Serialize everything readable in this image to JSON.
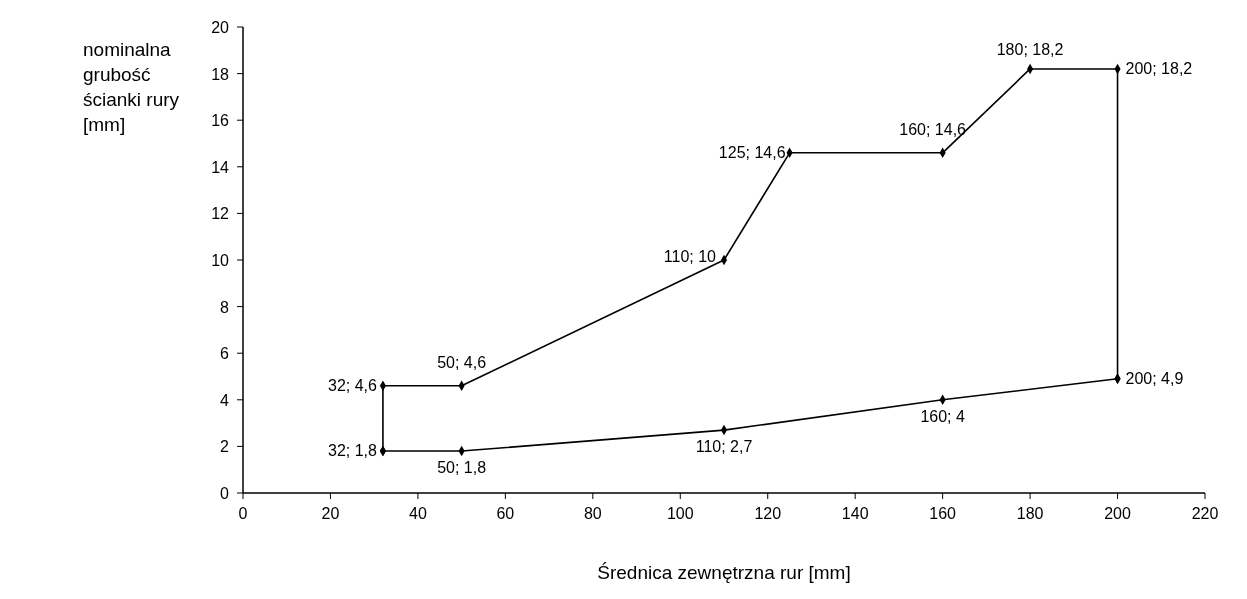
{
  "chart_data": {
    "type": "line",
    "xlabel": "Średnica zewnętrzna rur [mm]",
    "ylabel": "nominalna grubość ścianki rury [mm]",
    "xlim": [
      0,
      220
    ],
    "xticks": [
      0,
      20,
      40,
      60,
      80,
      100,
      120,
      140,
      160,
      180,
      200,
      220
    ],
    "ylim": [
      0,
      20
    ],
    "yticks": [
      0,
      2,
      4,
      6,
      8,
      10,
      12,
      14,
      16,
      18,
      20
    ],
    "grid": false,
    "marker": "diamond",
    "line_style": "solid",
    "series": [
      {
        "color": "#000000",
        "x": [
          32,
          32,
          50,
          110,
          125,
          160,
          180,
          200,
          200
        ],
        "values": [
          1.8,
          4.6,
          4.6,
          10,
          14.6,
          14.6,
          18.2,
          18.2,
          4.9
        ],
        "value_labels": [
          null,
          "32; 4,6",
          "50; 4,6",
          "110; 10",
          "125; 14,6",
          "160; 14,6",
          "180; 18,2",
          "200; 18,2",
          "200; 4,9"
        ]
      },
      {
        "color": "#000000",
        "x": [
          32,
          50,
          110,
          160,
          200
        ],
        "values": [
          1.8,
          1.8,
          2.7,
          4,
          4.9
        ],
        "value_labels": [
          "32; 1,8",
          "50; 1,8",
          "110; 2,7",
          "160; 4",
          null
        ]
      }
    ]
  }
}
